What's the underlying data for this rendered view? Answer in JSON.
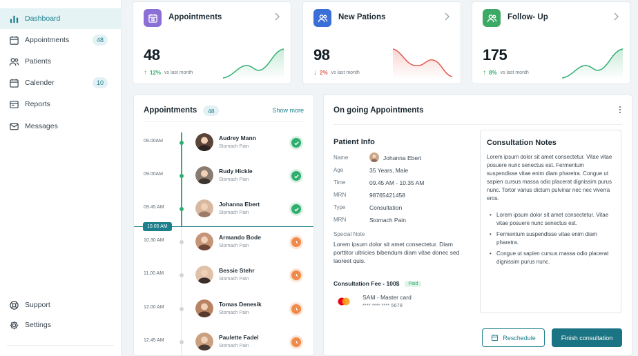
{
  "colors": {
    "accent": "#1b7f8c",
    "success": "#2fae6f",
    "danger": "#e25a4d",
    "pending": "#ef8a4a",
    "purple": "#8b6fd6",
    "blue": "#3a6fd8",
    "green": "#3caa66"
  },
  "sidebar": {
    "items": [
      {
        "label": "Dashboard",
        "icon": "bar-chart-icon",
        "active": true
      },
      {
        "label": "Appointments",
        "icon": "calendar-icon",
        "badge": "48"
      },
      {
        "label": "Patients",
        "icon": "users-icon"
      },
      {
        "label": "Calender",
        "icon": "calendar-icon",
        "badge": "10"
      },
      {
        "label": "Reports",
        "icon": "report-icon"
      },
      {
        "label": "Messages",
        "icon": "mail-icon"
      }
    ],
    "bottom": [
      {
        "label": "Support",
        "icon": "support-icon"
      },
      {
        "label": "Settings",
        "icon": "gear-icon"
      }
    ]
  },
  "stats": [
    {
      "title": "Appointments",
      "value": "48",
      "direction": "up",
      "change": "12%",
      "vs": "vs last month",
      "icon": "calendar-icon"
    },
    {
      "title": "New Pations",
      "value": "98",
      "direction": "down",
      "change": "2%",
      "vs": "vs last month",
      "icon": "users-icon"
    },
    {
      "title": "Follow- Up",
      "value": "175",
      "direction": "up",
      "change": "8%",
      "vs": "vs last month",
      "icon": "user-group-icon"
    }
  ],
  "appointments": {
    "title": "Appointments",
    "count": "48",
    "show_more": "Show more",
    "now_time": "10.05 AM",
    "slots": [
      {
        "time": "08.00AM",
        "name": "Audrey Mann",
        "reason": "Stomach Pain",
        "status": "done"
      },
      {
        "time": "09.00AM",
        "name": "Rudy Hickle",
        "reason": "Stomach Pain",
        "status": "done"
      },
      {
        "time": "09.45 AM",
        "name": "Johanna Ebert",
        "reason": "Stomach Pain",
        "status": "done"
      },
      {
        "time": "10.30 AM",
        "name": "Armando Bode",
        "reason": "Stomach Pain",
        "status": "pending"
      },
      {
        "time": "11.00 AM",
        "name": "Bessie Stehr",
        "reason": "Stomach Pain",
        "status": "pending"
      },
      {
        "time": "12.00 AM",
        "name": "Tomas Denesik",
        "reason": "Stomach Pain",
        "status": "pending"
      },
      {
        "time": "12.45 AM",
        "name": "Paulette Fadel",
        "reason": "Stomach Pain",
        "status": "pending"
      }
    ]
  },
  "ongoing": {
    "title": "On going Appointments",
    "patient_info": {
      "title": "Patient Info",
      "rows": [
        {
          "key": "Name",
          "value": "Johanna Ebert"
        },
        {
          "key": "Age",
          "value": "35 Years, Male"
        },
        {
          "key": "Time",
          "value": "09.45 AM - 10.35 AM"
        },
        {
          "key": "MRN",
          "value": "98765421458"
        },
        {
          "key": "Type",
          "value": "Consultation"
        },
        {
          "key": "MRN",
          "value": "Stomach Pain"
        }
      ],
      "special_note_label": "Special Note",
      "special_note": "Lorem ipsum dolor sit amet consectetur. Diam porttitor ultricies bibendum diam vitae donec sed laoreet quis.",
      "fee_label": "Consultation Fee - 100$",
      "fee_status": "Paid",
      "card_name": "SAM - Master card",
      "card_number": "**** **** **** 5678"
    },
    "notes": {
      "title": "Consultation Notes",
      "paragraph": "Lorem ipsum dolor sit amet consectetur. Vitae vitae posuere nunc senectus est. Fermentum suspendisse vitae enim diam pharetra. Congue ut sapien cursus massa odio placerat dignissim purus nunc. Tortor varius dictum pulvinar nec nec viverra eros.",
      "bullets": [
        "Lorem ipsum dolor sit amet consectetur. Vitae vitae posuere nunc senectus est.",
        "Fermentum suspendisse vitae enim diam pharetra.",
        "Congue ut sapien cursus massa odio placerat dignissim purus nunc."
      ]
    },
    "reschedule_label": "Reschedule",
    "finish_label": "Finish consultation"
  }
}
